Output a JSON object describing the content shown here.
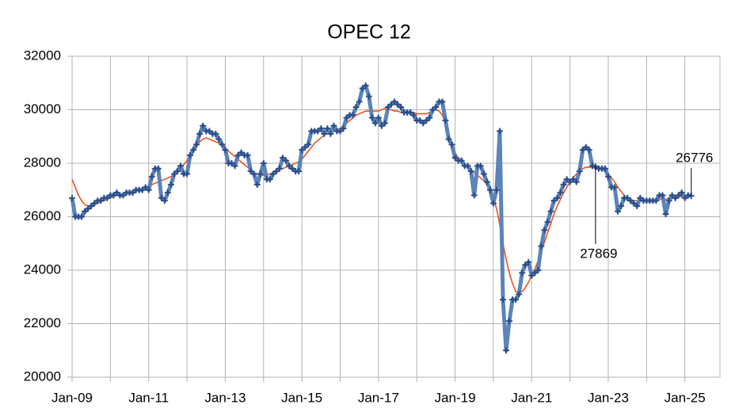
{
  "chart_data": {
    "type": "line",
    "title": "OPEC 12",
    "x": [
      "2009-01",
      "2009-02",
      "2009-03",
      "2009-04",
      "2009-05",
      "2009-06",
      "2009-07",
      "2009-08",
      "2009-09",
      "2009-10",
      "2009-11",
      "2009-12",
      "2010-01",
      "2010-02",
      "2010-03",
      "2010-04",
      "2010-05",
      "2010-06",
      "2010-07",
      "2010-08",
      "2010-09",
      "2010-10",
      "2010-11",
      "2010-12",
      "2011-01",
      "2011-02",
      "2011-03",
      "2011-04",
      "2011-05",
      "2011-06",
      "2011-07",
      "2011-08",
      "2011-09",
      "2011-10",
      "2011-11",
      "2011-12",
      "2012-01",
      "2012-02",
      "2012-03",
      "2012-04",
      "2012-05",
      "2012-06",
      "2012-07",
      "2012-08",
      "2012-09",
      "2012-10",
      "2012-11",
      "2012-12",
      "2013-01",
      "2013-02",
      "2013-03",
      "2013-04",
      "2013-05",
      "2013-06",
      "2013-07",
      "2013-08",
      "2013-09",
      "2013-10",
      "2013-11",
      "2013-12",
      "2014-01",
      "2014-02",
      "2014-03",
      "2014-04",
      "2014-05",
      "2014-06",
      "2014-07",
      "2014-08",
      "2014-09",
      "2014-10",
      "2014-11",
      "2014-12",
      "2015-01",
      "2015-02",
      "2015-03",
      "2015-04",
      "2015-05",
      "2015-06",
      "2015-07",
      "2015-08",
      "2015-09",
      "2015-10",
      "2015-11",
      "2015-12",
      "2016-01",
      "2016-02",
      "2016-03",
      "2016-04",
      "2016-05",
      "2016-06",
      "2016-07",
      "2016-08",
      "2016-09",
      "2016-10",
      "2016-11",
      "2016-12",
      "2017-01",
      "2017-02",
      "2017-03",
      "2017-04",
      "2017-05",
      "2017-06",
      "2017-07",
      "2017-08",
      "2017-09",
      "2017-10",
      "2017-11",
      "2017-12",
      "2018-01",
      "2018-02",
      "2018-03",
      "2018-04",
      "2018-05",
      "2018-06",
      "2018-07",
      "2018-08",
      "2018-09",
      "2018-10",
      "2018-11",
      "2018-12",
      "2019-01",
      "2019-02",
      "2019-03",
      "2019-04",
      "2019-05",
      "2019-06",
      "2019-07",
      "2019-08",
      "2019-09",
      "2019-10",
      "2019-11",
      "2019-12",
      "2020-01",
      "2020-02",
      "2020-03",
      "2020-04",
      "2020-05",
      "2020-06",
      "2020-07",
      "2020-08",
      "2020-09",
      "2020-10",
      "2020-11",
      "2020-12",
      "2021-01",
      "2021-02",
      "2021-03",
      "2021-04",
      "2021-05",
      "2021-06",
      "2021-07",
      "2021-08",
      "2021-09",
      "2021-10",
      "2021-11",
      "2021-12",
      "2022-01",
      "2022-02",
      "2022-03",
      "2022-04",
      "2022-05",
      "2022-06",
      "2022-07",
      "2022-08",
      "2022-09",
      "2022-10",
      "2022-11",
      "2022-12",
      "2023-01",
      "2023-02",
      "2023-03",
      "2023-04",
      "2023-05",
      "2023-06",
      "2023-07",
      "2023-08",
      "2023-09",
      "2023-10",
      "2023-11",
      "2023-12",
      "2024-01",
      "2024-02",
      "2024-03",
      "2024-04",
      "2024-05",
      "2024-06",
      "2024-07",
      "2024-08",
      "2024-09",
      "2024-10",
      "2024-11",
      "2024-12",
      "2025-01",
      "2025-02",
      "2025-03"
    ],
    "series": [
      {
        "color": "#5b84b8",
        "marker_color": "#2a4a86",
        "values": [
          26700,
          26000,
          26000,
          26000,
          26200,
          26300,
          26400,
          26500,
          26600,
          26600,
          26700,
          26700,
          26800,
          26800,
          26900,
          26800,
          26800,
          26900,
          26900,
          26900,
          27000,
          27000,
          27000,
          27100,
          27000,
          27500,
          27800,
          27800,
          26700,
          26600,
          26900,
          27200,
          27600,
          27700,
          27900,
          27600,
          27600,
          28300,
          28500,
          28700,
          29100,
          29400,
          29200,
          29200,
          29100,
          29100,
          28900,
          28700,
          28500,
          28000,
          28000,
          27900,
          28300,
          28400,
          28300,
          28300,
          27700,
          27600,
          27200,
          27600,
          28000,
          27400,
          27400,
          27600,
          27700,
          27800,
          28200,
          28100,
          27900,
          27800,
          27700,
          27700,
          28500,
          28600,
          28700,
          29200,
          29200,
          29200,
          29300,
          29100,
          29300,
          29100,
          29400,
          29200,
          29200,
          29300,
          29700,
          29800,
          29800,
          30100,
          30300,
          30800,
          30900,
          30500,
          29700,
          29500,
          29700,
          29400,
          29500,
          30100,
          30200,
          30300,
          30200,
          30100,
          29900,
          29900,
          29900,
          29800,
          29600,
          29600,
          29500,
          29600,
          29700,
          30000,
          30100,
          30300,
          30300,
          29600,
          28900,
          28700,
          28200,
          28100,
          28100,
          27900,
          27900,
          27700,
          26800,
          27900,
          27900,
          27600,
          27300,
          27000,
          26500,
          27000,
          29200,
          22900,
          21000,
          22100,
          22900,
          22900,
          23100,
          23900,
          24200,
          24300,
          23800,
          23900,
          24000,
          24900,
          25500,
          25800,
          26200,
          26600,
          26700,
          26900,
          27200,
          27400,
          27300,
          27400,
          27300,
          27700,
          28500,
          28600,
          28500,
          27900,
          27869,
          27800,
          27800,
          27800,
          27500,
          27100,
          27100,
          26200,
          26400,
          26700,
          26700,
          26600,
          26500,
          26400,
          26700,
          26600,
          26600,
          26600,
          26600,
          26600,
          26800,
          26800,
          26100,
          26600,
          26800,
          26700,
          26800,
          26900,
          26700,
          26800,
          26776
        ]
      },
      {
        "color": "#e8541f",
        "values": [
          27400,
          27100,
          26800,
          26600,
          26450,
          26400,
          26400,
          26450,
          26500,
          26550,
          26600,
          26650,
          26700,
          26750,
          26800,
          26800,
          26850,
          26850,
          26900,
          26900,
          26950,
          27000,
          27050,
          27100,
          27150,
          27200,
          27250,
          27300,
          27350,
          27400,
          27450,
          27500,
          27600,
          27700,
          27800,
          27950,
          28100,
          28300,
          28500,
          28650,
          28800,
          28900,
          28950,
          28900,
          28850,
          28800,
          28750,
          28650,
          28550,
          28450,
          28350,
          28250,
          28150,
          28050,
          27950,
          27850,
          27750,
          27650,
          27600,
          27550,
          27550,
          27550,
          27600,
          27650,
          27700,
          27750,
          27800,
          27850,
          27900,
          27950,
          28000,
          28050,
          28150,
          28300,
          28450,
          28600,
          28750,
          28850,
          28950,
          29050,
          29100,
          29150,
          29200,
          29250,
          29300,
          29400,
          29500,
          29600,
          29700,
          29800,
          29850,
          29900,
          29950,
          29950,
          29950,
          29950,
          29950,
          30000,
          30050,
          30050,
          30000,
          29950,
          29950,
          29900,
          29900,
          29900,
          29900,
          29900,
          29850,
          29850,
          29850,
          29850,
          29900,
          29950,
          30000,
          29950,
          29800,
          29500,
          29100,
          28700,
          28400,
          28200,
          28050,
          27950,
          27850,
          27750,
          27650,
          27550,
          27450,
          27350,
          27200,
          27000,
          26700,
          26300,
          25700,
          25000,
          24400,
          23900,
          23500,
          23200,
          23150,
          23200,
          23350,
          23550,
          23800,
          24050,
          24350,
          24700,
          25050,
          25400,
          25750,
          26100,
          26400,
          26650,
          26900,
          27100,
          27300,
          27450,
          27600,
          27700,
          27800,
          27850,
          27850,
          27850,
          27800,
          27800,
          27750,
          27700,
          27600,
          27450,
          27300,
          27100,
          26950,
          26800,
          26700,
          26650,
          26600,
          26600,
          26600,
          26600,
          26600,
          26600,
          26600,
          26600,
          26650,
          26650,
          26650,
          26700,
          26700,
          26700,
          26750,
          26750,
          26750,
          26780,
          26790
        ]
      }
    ],
    "annotations": [
      {
        "text": "27869",
        "x": "2022-09",
        "side": "below"
      },
      {
        "text": "26776",
        "x": "2025-03",
        "side": "above"
      }
    ],
    "xlim": [
      "2009-01",
      "2025-12"
    ],
    "xticks": [
      {
        "value": "2009-01",
        "label": "Jan-09"
      },
      {
        "value": "2010-01",
        "label": null
      },
      {
        "value": "2011-01",
        "label": "Jan-11"
      },
      {
        "value": "2012-01",
        "label": null
      },
      {
        "value": "2013-01",
        "label": "Jan-13"
      },
      {
        "value": "2014-01",
        "label": null
      },
      {
        "value": "2015-01",
        "label": "Jan-15"
      },
      {
        "value": "2016-01",
        "label": null
      },
      {
        "value": "2017-01",
        "label": "Jan-17"
      },
      {
        "value": "2018-01",
        "label": null
      },
      {
        "value": "2019-01",
        "label": "Jan-19"
      },
      {
        "value": "2020-01",
        "label": null
      },
      {
        "value": "2021-01",
        "label": "Jan-21"
      },
      {
        "value": "2022-01",
        "label": null
      },
      {
        "value": "2023-01",
        "label": "Jan-23"
      },
      {
        "value": "2024-01",
        "label": null
      },
      {
        "value": "2025-01",
        "label": "Jan-25"
      }
    ],
    "ylim": [
      20000,
      32000
    ],
    "yticks": [
      20000,
      22000,
      24000,
      26000,
      28000,
      30000,
      32000
    ],
    "grid": true
  }
}
